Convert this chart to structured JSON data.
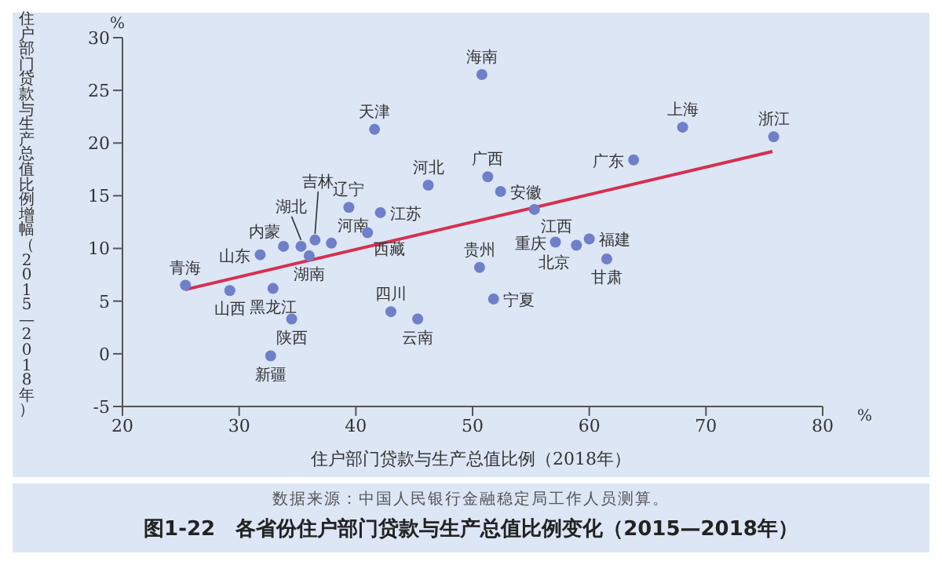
{
  "chart_data": {
    "type": "scatter",
    "title": "图1-22　各省份住户部门贷款与生产总值比例变化（2015—2018年）",
    "xlabel": "住户部门贷款与生产总值比例（2018年）",
    "ylabel": "住户部门贷款与生产总值比例增幅（2015—2018年）",
    "annotations": [
      "%",
      "%",
      "数据来源：中国人民银行金融稳定局工作人员测算。"
    ],
    "xlim": [
      20,
      80
    ],
    "xticks": [
      20,
      30,
      40,
      50,
      60,
      70,
      80
    ],
    "ylim": [
      -5,
      30
    ],
    "yticks": [
      -5,
      0,
      5,
      10,
      15,
      20,
      25,
      30
    ],
    "grid": false,
    "legend": false,
    "marker": "circle",
    "series": [
      {
        "color": "#6f7fc9",
        "x": [
          25.4,
          29.2,
          32.9,
          34.5,
          32.7,
          31.8,
          33.8,
          35.3,
          36.5,
          36.0,
          37.9,
          39.4,
          41.0,
          42.1,
          41.6,
          46.2,
          43.0,
          45.3,
          50.8,
          51.3,
          52.4,
          55.3,
          50.6,
          51.8,
          57.1,
          58.9,
          60.0,
          61.5,
          63.8,
          68.0,
          75.8
        ],
        "values": [
          6.5,
          6.0,
          6.2,
          3.3,
          -0.2,
          9.4,
          10.2,
          10.2,
          10.8,
          9.3,
          10.5,
          13.9,
          11.5,
          13.4,
          21.3,
          16.0,
          4.0,
          3.3,
          26.5,
          16.8,
          15.4,
          13.7,
          8.2,
          5.2,
          10.6,
          10.3,
          10.9,
          9.0,
          18.4,
          21.5,
          20.6
        ],
        "value_labels": [
          "青海",
          "山西",
          "黑龙江",
          "陕西",
          "新疆",
          "山东",
          "内蒙",
          "湖北",
          "吉林",
          "湖南",
          "河南",
          "辽宁",
          "西藏",
          "江苏",
          "天津",
          "河北",
          "四川",
          "云南",
          "海南",
          "广西",
          "安徽",
          "江西",
          "贵州",
          "宁夏",
          "重庆",
          "北京",
          "福建",
          "甘肃",
          "广东",
          "上海",
          "浙江"
        ]
      },
      {
        "type": "line",
        "color": "#d6304f",
        "x": [
          25.4,
          75.7
        ],
        "values": [
          6.1,
          19.2
        ],
        "marker": "none",
        "line_style": "solid"
      }
    ]
  }
}
